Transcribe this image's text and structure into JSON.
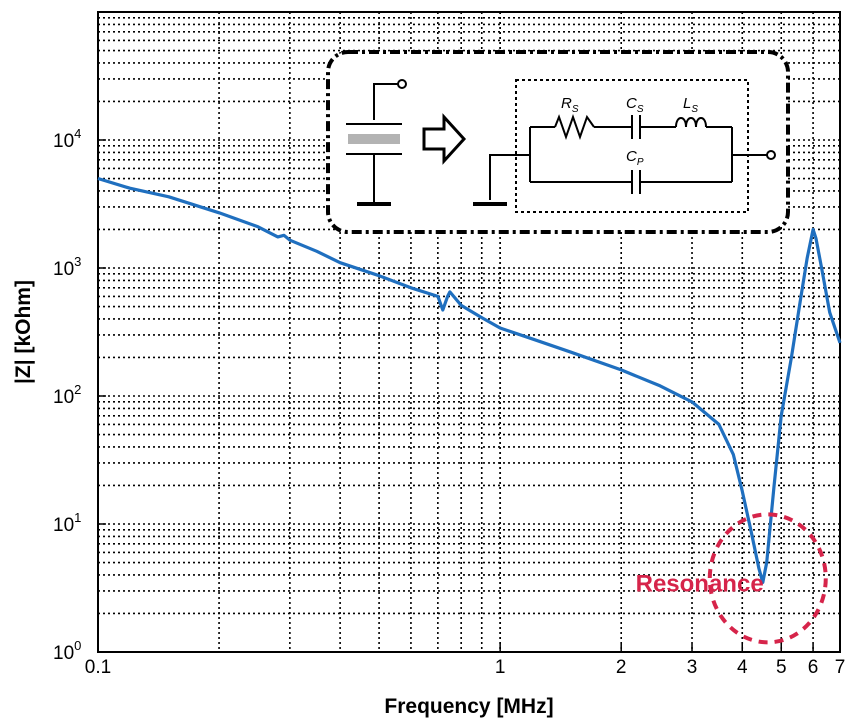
{
  "chart_data": {
    "type": "line",
    "title": "",
    "xlabel": "Frequency [MHz]",
    "ylabel": "|Z| [kOhm]",
    "xscale": "log",
    "yscale": "log",
    "xlim": [
      0.1,
      7
    ],
    "ylim": [
      1,
      100000
    ],
    "grid": true,
    "x_ticks": [
      0.1,
      1,
      2,
      3,
      4,
      5,
      6,
      7
    ],
    "x_tick_labels": [
      "0.1",
      "1",
      "2",
      "3",
      "4",
      "5",
      "6",
      "7"
    ],
    "y_ticks": [
      1,
      10,
      100,
      1000,
      10000
    ],
    "y_tick_labels": [
      {
        "base": "10",
        "exp": "0"
      },
      {
        "base": "10",
        "exp": "1"
      },
      {
        "base": "10",
        "exp": "2"
      },
      {
        "base": "10",
        "exp": "3"
      },
      {
        "base": "10",
        "exp": "4"
      }
    ],
    "series": [
      {
        "color": "#1f6fbf",
        "x": [
          0.1,
          0.12,
          0.15,
          0.2,
          0.25,
          0.28,
          0.29,
          0.3,
          0.35,
          0.4,
          0.5,
          0.6,
          0.7,
          0.72,
          0.74,
          0.75,
          0.8,
          0.9,
          1.0,
          1.2,
          1.5,
          2.0,
          2.5,
          3.0,
          3.5,
          3.8,
          4.0,
          4.2,
          4.4,
          4.5,
          4.6,
          4.8,
          5.0,
          5.3,
          5.6,
          5.8,
          6.0,
          6.1,
          6.3,
          6.6,
          7.0
        ],
        "y": [
          5000,
          4200,
          3600,
          2700,
          2100,
          1750,
          1800,
          1650,
          1350,
          1100,
          870,
          700,
          600,
          470,
          600,
          650,
          510,
          410,
          340,
          280,
          220,
          160,
          120,
          90,
          60,
          35,
          18,
          9,
          4.5,
          3.5,
          5,
          20,
          70,
          200,
          600,
          1200,
          2000,
          1700,
          1000,
          450,
          260
        ]
      }
    ],
    "annotations": [
      {
        "text": "Resonance",
        "color": "#d6244a",
        "x": 2.3,
        "y": 3.5
      },
      {
        "shape": "dashed-circle",
        "color": "#d6244a",
        "x": 4.55,
        "y": 3.5
      }
    ],
    "inset": {
      "labels": {
        "rs": "R",
        "rs_sub": "S",
        "cs": "C",
        "cs_sub": "S",
        "ls": "L",
        "ls_sub": "S",
        "cp": "C",
        "cp_sub": "P"
      }
    }
  }
}
